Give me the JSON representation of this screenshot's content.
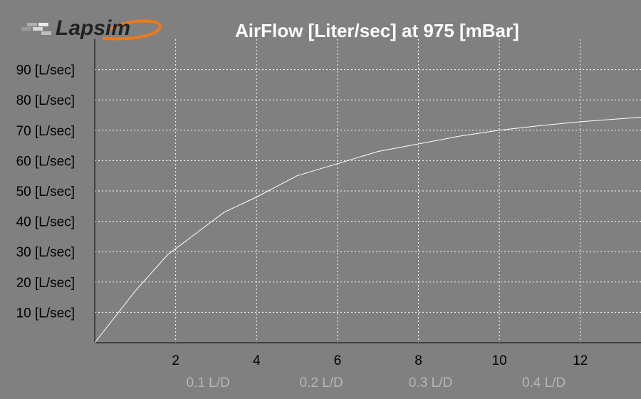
{
  "logo": {
    "text": "Lapsim"
  },
  "chart_data": {
    "type": "line",
    "title": "AirFlow [Liter/sec] at 975 [mBar]",
    "xlabel": "",
    "ylabel": "",
    "xlim": [
      0,
      13.5
    ],
    "ylim": [
      0,
      100
    ],
    "grid": true,
    "x_ticks": [
      2,
      4,
      6,
      8,
      10,
      12
    ],
    "y_ticks": [
      {
        "value": 10,
        "label": "10 [L/sec]"
      },
      {
        "value": 20,
        "label": "20 [L/sec]"
      },
      {
        "value": 30,
        "label": "30 [L/sec]"
      },
      {
        "value": 40,
        "label": "40 [L/sec]"
      },
      {
        "value": 50,
        "label": "50 [L/sec]"
      },
      {
        "value": 60,
        "label": "60 [L/sec]"
      },
      {
        "value": 70,
        "label": "70 [L/sec]"
      },
      {
        "value": 80,
        "label": "80 [L/sec]"
      },
      {
        "value": 90,
        "label": "90 [L/sec]"
      }
    ],
    "secondary_x_labels": [
      {
        "x": 2.8,
        "label": "0.1  L/D"
      },
      {
        "x": 5.6,
        "label": "0.2  L/D"
      },
      {
        "x": 8.3,
        "label": "0.3  L/D"
      },
      {
        "x": 11.1,
        "label": "0.4  L/D"
      }
    ],
    "series": [
      {
        "color": "#ffffff",
        "x": [
          0,
          1.0,
          1.8,
          2.6,
          3.2,
          4.0,
          5.0,
          6.0,
          7.0,
          8.0,
          9.0,
          10.0,
          11.0,
          12.0,
          13.0,
          13.5
        ],
        "y": [
          0,
          17,
          29,
          37,
          43,
          48,
          55,
          59,
          63,
          65.5,
          68,
          70,
          71.5,
          72.8,
          73.8,
          74.3
        ]
      }
    ]
  }
}
